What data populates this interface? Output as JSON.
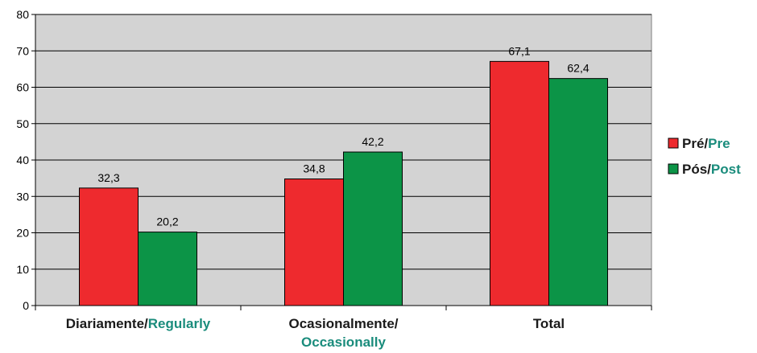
{
  "chart_data": {
    "type": "bar",
    "categories": [
      {
        "primary": "Diariamente/",
        "secondary": "Regularly",
        "wrap": false
      },
      {
        "primary": "Ocasionalmente/",
        "secondary": "Occasionally",
        "wrap": true
      },
      {
        "primary": "Total",
        "secondary": "",
        "wrap": false
      }
    ],
    "series": [
      {
        "name_primary": "Pré/",
        "name_secondary": "Pre",
        "color": "#ee2a2e",
        "values": [
          32.3,
          34.8,
          67.1
        ],
        "labels": [
          "32,3",
          "34,8",
          "67,1"
        ]
      },
      {
        "name_primary": "Pós/",
        "name_secondary": "Post",
        "color": "#0c9447",
        "values": [
          20.2,
          42.2,
          62.4
        ],
        "labels": [
          "20,2",
          "42,2",
          "62,4"
        ]
      }
    ],
    "ylim": [
      0,
      80
    ],
    "yticks": [
      0,
      10,
      20,
      30,
      40,
      50,
      60,
      70,
      80
    ],
    "grid": true,
    "plot_background": "#d3d3d3",
    "secondary_text_color": "#1a8c7c",
    "legend_position": "right"
  }
}
